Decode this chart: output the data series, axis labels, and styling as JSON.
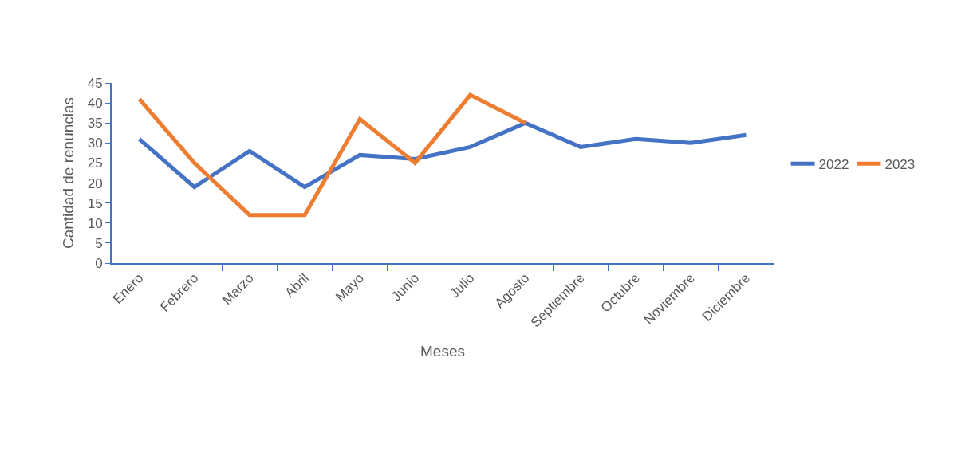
{
  "chart_data": {
    "type": "line",
    "xlabel": "Meses",
    "ylabel": "Cantidad de renuncias",
    "categories": [
      "Enero",
      "Febrero",
      "Marzo",
      "Abril",
      "Mayo",
      "Junio",
      "Julio",
      "Agosto",
      "Septiembre",
      "Octubre",
      "Noviembre",
      "Diciembre"
    ],
    "series": [
      {
        "name": "2022",
        "color": "#4472c4",
        "values": [
          31,
          19,
          28,
          19,
          27,
          26,
          29,
          35,
          29,
          31,
          30,
          32
        ]
      },
      {
        "name": "2023",
        "color": "#ed7d31",
        "values": [
          41,
          25,
          12,
          12,
          36,
          25,
          42,
          35,
          null,
          null,
          null,
          null
        ]
      }
    ],
    "ylim": [
      0,
      45
    ],
    "yticks": [
      0,
      5,
      10,
      15,
      20,
      25,
      30,
      35,
      40,
      45
    ],
    "grid": false,
    "legend": "right",
    "marker": "none",
    "line_style": "solid"
  }
}
